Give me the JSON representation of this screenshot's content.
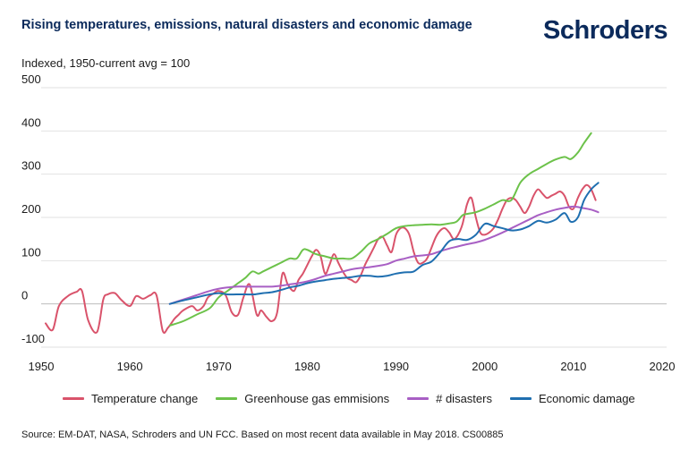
{
  "header": {
    "title": "Rising temperatures, emissions, natural disasters and economic damage",
    "brand": "Schroders"
  },
  "footer": {
    "source": "Source: EM-DAT, NASA, Schroders and UN FCC. Based on most recent data available in May 2018. CS00885"
  },
  "chart_data": {
    "type": "line",
    "title": "Rising temperatures, emissions, natural disasters and economic damage",
    "ylabel": "Indexed, 1950-current avg = 100",
    "xlabel": "",
    "xlim": [
      1950,
      2020
    ],
    "ylim": [
      -100,
      500
    ],
    "xticks": [
      1950,
      1960,
      1970,
      1980,
      1990,
      2000,
      2010,
      2020
    ],
    "yticks": [
      500,
      400,
      300,
      200,
      100,
      0,
      -100
    ],
    "grid": "horizontal",
    "legend_position": "bottom",
    "series": [
      {
        "name": "Temperature change",
        "color": "#d9536b",
        "x": [
          1950.5,
          1951.3,
          1952,
          1953,
          1954,
          1954.6,
          1955.3,
          1956.3,
          1957,
          1957.5,
          1958.3,
          1959,
          1960,
          1960.7,
          1961.5,
          1962.3,
          1963,
          1963.7,
          1964.3,
          1965,
          1965.5,
          1966,
          1967,
          1967.6,
          1968.3,
          1968.8,
          1969.5,
          1970,
          1970.8,
          1971.5,
          1972.2,
          1972.8,
          1973.5,
          1974.3,
          1974.8,
          1975.4,
          1976,
          1976.6,
          1977.2,
          1977.8,
          1978.5,
          1979,
          1979.5,
          1980,
          1980.5,
          1981,
          1981.5,
          1982,
          1982.5,
          1983,
          1983.5,
          1984,
          1984.5,
          1985,
          1985.5,
          1986,
          1986.5,
          1987,
          1987.5,
          1988,
          1988.5,
          1989,
          1989.5,
          1990,
          1990.5,
          1991,
          1991.5,
          1992,
          1992.5,
          1993,
          1993.5,
          1994,
          1994.5,
          1995,
          1995.5,
          1996,
          1996.5,
          1997,
          1997.5,
          1998,
          1998.5,
          1999,
          1999.5,
          2000,
          2000.5,
          2001,
          2001.5,
          2002,
          2002.5,
          2003,
          2003.5,
          2004,
          2004.5,
          2005,
          2005.5,
          2006,
          2006.5,
          2007,
          2007.5,
          2008,
          2008.5,
          2009,
          2009.5,
          2010,
          2010.5,
          2011,
          2011.5,
          2012,
          2012.5
        ],
        "values": [
          -45,
          -60,
          -5,
          18,
          28,
          30,
          -38,
          -65,
          10,
          22,
          25,
          10,
          -5,
          18,
          12,
          20,
          20,
          -62,
          -55,
          -35,
          -25,
          -15,
          -5,
          -15,
          -5,
          15,
          25,
          30,
          20,
          -20,
          -25,
          15,
          45,
          -25,
          -15,
          -30,
          -40,
          -20,
          70,
          45,
          30,
          55,
          70,
          90,
          110,
          125,
          110,
          70,
          90,
          115,
          95,
          75,
          60,
          55,
          50,
          65,
          90,
          110,
          130,
          150,
          155,
          135,
          120,
          160,
          175,
          175,
          160,
          120,
          95,
          95,
          105,
          130,
          155,
          170,
          175,
          165,
          150,
          160,
          185,
          230,
          245,
          200,
          165,
          160,
          165,
          175,
          195,
          220,
          240,
          245,
          240,
          225,
          210,
          225,
          250,
          265,
          255,
          245,
          250,
          255,
          260,
          250,
          225,
          220,
          245,
          265,
          275,
          265,
          240
        ]
      },
      {
        "name": "Greenhouse gas emmisions",
        "color": "#6cc24a",
        "x": [
          1964.5,
          1966,
          1967.5,
          1969,
          1970,
          1971,
          1972,
          1973,
          1973.8,
          1974.5,
          1975,
          1976,
          1977,
          1978,
          1978.8,
          1979.5,
          1980,
          1981,
          1982,
          1983,
          1984,
          1985,
          1986,
          1987,
          1988,
          1989,
          1990,
          1991,
          1992,
          1993,
          1994,
          1995,
          1996,
          1996.8,
          1997.5,
          1998,
          1999,
          2000,
          2001,
          2002,
          2003,
          2004,
          2005,
          2006,
          2007,
          2008,
          2009,
          2009.7,
          2010.5,
          2011.2,
          2012
        ],
        "values": [
          -50,
          -40,
          -25,
          -10,
          15,
          30,
          45,
          60,
          75,
          70,
          75,
          85,
          95,
          105,
          105,
          125,
          125,
          115,
          110,
          105,
          105,
          105,
          120,
          140,
          150,
          162,
          175,
          180,
          182,
          183,
          184,
          183,
          186,
          190,
          205,
          208,
          212,
          220,
          230,
          240,
          240,
          280,
          300,
          312,
          324,
          334,
          340,
          335,
          350,
          372,
          395
        ]
      },
      {
        "name": "# disasters",
        "color": "#a85fc4",
        "x": [
          1964.5,
          1966,
          1967.5,
          1969,
          1970,
          1971,
          1972,
          1973,
          1974,
          1975,
          1976,
          1977,
          1978,
          1979,
          1980,
          1981,
          1982,
          1983,
          1984,
          1985,
          1986,
          1987,
          1988,
          1989,
          1990,
          1991,
          1992,
          1993,
          1994,
          1995,
          1996,
          1997,
          1998,
          1999,
          2000,
          2001,
          2002,
          2003,
          2004,
          2005,
          2006,
          2007,
          2008,
          2009,
          2010,
          2011,
          2012,
          2012.8
        ],
        "values": [
          0,
          10,
          20,
          30,
          35,
          38,
          40,
          40,
          40,
          40,
          40,
          42,
          45,
          48,
          52,
          58,
          65,
          70,
          75,
          80,
          83,
          85,
          88,
          92,
          100,
          105,
          110,
          112,
          115,
          122,
          128,
          133,
          138,
          142,
          148,
          156,
          165,
          175,
          185,
          195,
          205,
          212,
          218,
          222,
          225,
          222,
          218,
          212
        ]
      },
      {
        "name": "Economic damage",
        "color": "#1f6fb0",
        "x": [
          1964.5,
          1966,
          1967.5,
          1969,
          1970,
          1971,
          1972,
          1973,
          1974,
          1975,
          1976,
          1977,
          1978,
          1979,
          1980,
          1981,
          1982,
          1983,
          1984,
          1985,
          1986,
          1987,
          1988,
          1989,
          1990,
          1991,
          1992,
          1993,
          1994,
          1995,
          1996,
          1997,
          1998,
          1999,
          2000,
          2001,
          2002,
          2003,
          2004,
          2005,
          2006,
          2007,
          2008,
          2009,
          2009.7,
          2010.5,
          2011.2,
          2012,
          2012.8
        ],
        "values": [
          0,
          8,
          15,
          22,
          25,
          22,
          22,
          22,
          22,
          25,
          27,
          32,
          38,
          42,
          48,
          52,
          55,
          58,
          60,
          62,
          65,
          65,
          63,
          65,
          70,
          73,
          75,
          90,
          98,
          120,
          145,
          150,
          148,
          160,
          185,
          180,
          175,
          170,
          172,
          180,
          192,
          188,
          195,
          210,
          190,
          200,
          240,
          265,
          280
        ]
      }
    ]
  }
}
